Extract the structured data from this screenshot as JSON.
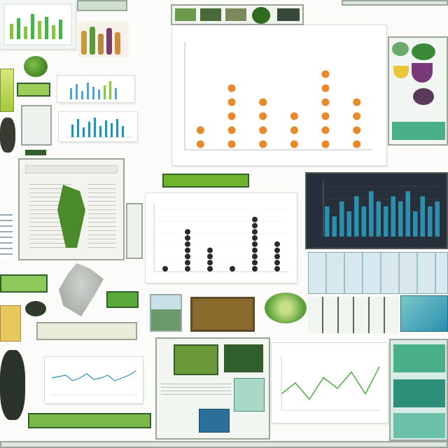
{
  "collage": {
    "main_chart": {
      "title": "",
      "xlabel": "",
      "categories": [
        "",
        "",
        "",
        "",
        "",
        ""
      ]
    },
    "mid_chart": {
      "title": ""
    },
    "line_chart": {
      "title": ""
    },
    "teal_chart": {},
    "side_labels": {
      "top_left_note": "",
      "mid_left_note": "",
      "right_label": ""
    },
    "colors": {
      "orange": "#e98a2a",
      "dark_dot": "#2a2a2a",
      "teal_bar": "#2b8fb0",
      "green_line": "#58b04a",
      "green_ui": "#6fb42c",
      "dark_panel": "#27303a"
    }
  },
  "chart_data": [
    {
      "type": "scatter",
      "title": "",
      "categories": [
        "",
        "",
        "",
        "",
        "",
        ""
      ],
      "series": [
        {
          "values": [
            2,
            5,
            4,
            3,
            6,
            4
          ]
        }
      ]
    },
    {
      "type": "scatter",
      "title": "",
      "series": [
        {
          "values": [
            1,
            7,
            4,
            1,
            9,
            5
          ]
        }
      ]
    },
    {
      "type": "bar",
      "series": [
        {
          "values": [
            6,
            4,
            7,
            5,
            8,
            6,
            9,
            7,
            6,
            8,
            7,
            9,
            5,
            8,
            6,
            7
          ]
        }
      ]
    },
    {
      "type": "line",
      "title": "",
      "series": [
        {
          "values": [
            3,
            5,
            2,
            6,
            4,
            7,
            3,
            8
          ]
        }
      ]
    }
  ]
}
